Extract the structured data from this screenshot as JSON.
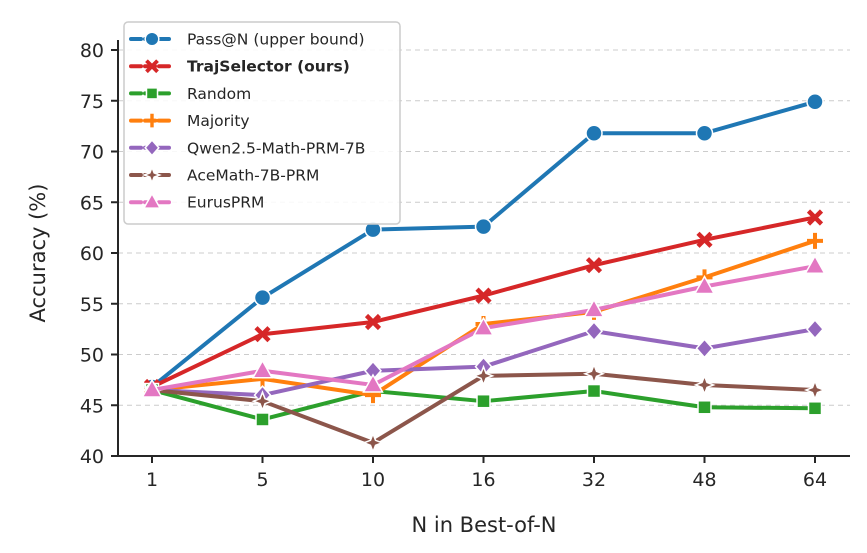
{
  "chart_data": {
    "type": "line",
    "xlabel": "N in Best-of-N",
    "ylabel": "Accuracy (%)",
    "categories": [
      "1",
      "5",
      "10",
      "16",
      "32",
      "48",
      "64"
    ],
    "ylim": [
      40,
      80
    ],
    "yticks": [
      40,
      45,
      50,
      55,
      60,
      65,
      70,
      75,
      80
    ],
    "grid": "horizontal dashed",
    "legend_position": "top-left",
    "series": [
      {
        "name": "Pass@N (upper bound)",
        "color": "#1f77b4",
        "marker": "circle",
        "bold": false,
        "values": [
          46.8,
          55.6,
          62.3,
          62.6,
          71.8,
          71.8,
          74.9
        ]
      },
      {
        "name": "TrajSelector (ours)",
        "color": "#d62728",
        "marker": "x",
        "bold": true,
        "values": [
          46.8,
          52.0,
          53.2,
          55.8,
          58.8,
          61.3,
          63.5
        ]
      },
      {
        "name": "Random",
        "color": "#2ca02c",
        "marker": "square",
        "bold": false,
        "values": [
          46.5,
          43.6,
          46.4,
          45.4,
          46.4,
          44.8,
          44.7
        ]
      },
      {
        "name": "Majority",
        "color": "#ff7f0e",
        "marker": "plus",
        "bold": false,
        "values": [
          46.5,
          47.6,
          46.0,
          53.0,
          54.2,
          57.6,
          61.2
        ]
      },
      {
        "name": "Qwen2.5-Math-PRM-7B",
        "color": "#9467bd",
        "marker": "diamond",
        "bold": false,
        "values": [
          46.5,
          46.0,
          48.4,
          48.8,
          52.3,
          50.6,
          52.5
        ]
      },
      {
        "name": "AceMath-7B-PRM",
        "color": "#8c564b",
        "marker": "star4",
        "bold": false,
        "values": [
          46.5,
          45.4,
          41.3,
          47.9,
          48.1,
          47.0,
          46.5
        ]
      },
      {
        "name": "EurusPRM",
        "color": "#e377c2",
        "marker": "triangle",
        "bold": false,
        "values": [
          46.5,
          48.4,
          47.0,
          52.6,
          54.4,
          56.7,
          58.7
        ]
      }
    ]
  }
}
